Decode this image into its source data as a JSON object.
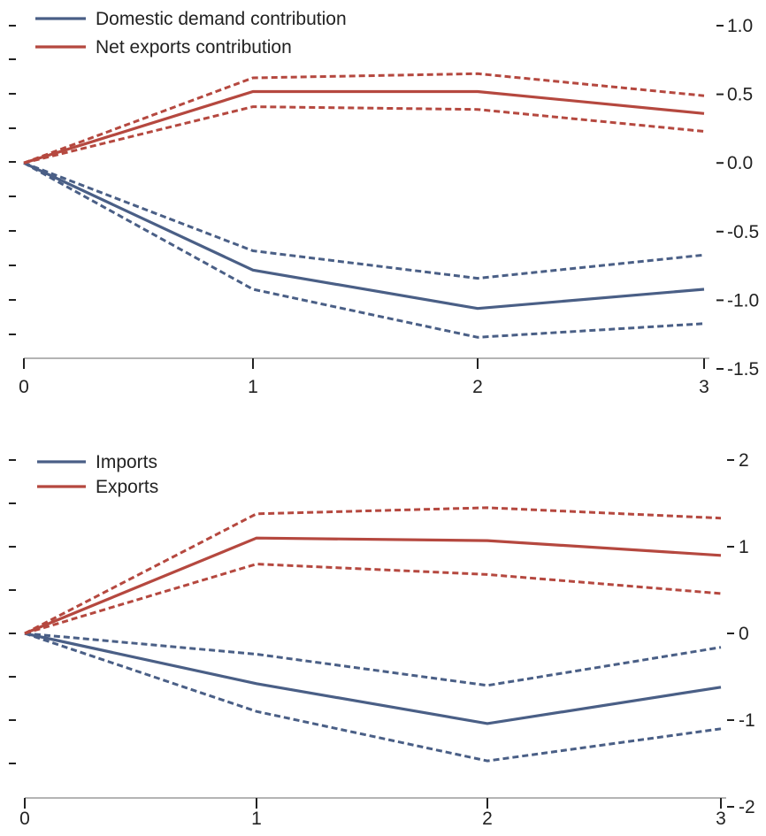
{
  "chart_data": [
    {
      "type": "line",
      "x": [
        0,
        1,
        2,
        3
      ],
      "x_tick_labels": [
        "0",
        "1",
        "2",
        "3"
      ],
      "y_tick_labels": [
        "1.0",
        "0.5",
        "0.0",
        "-0.5",
        "-1.0",
        "-1.5"
      ],
      "ylim": [
        -1.5,
        1.0
      ],
      "y_axis_side": "right",
      "grid": false,
      "legend_position": "top-left",
      "series": [
        {
          "name": "Domestic demand contribution",
          "color": "#4a5f86",
          "values": [
            0.0,
            -0.78,
            -1.06,
            -0.92
          ],
          "upper": [
            0.0,
            -0.64,
            -0.84,
            -0.67
          ],
          "lower": [
            0.0,
            -0.92,
            -1.27,
            -1.17
          ]
        },
        {
          "name": "Net exports contribution",
          "color": "#b5483f",
          "values": [
            0.0,
            0.52,
            0.52,
            0.36
          ],
          "upper": [
            0.0,
            0.62,
            0.65,
            0.49
          ],
          "lower": [
            0.0,
            0.41,
            0.39,
            0.23
          ]
        }
      ]
    },
    {
      "type": "line",
      "x": [
        0,
        1,
        2,
        3
      ],
      "x_tick_labels": [
        "0",
        "1",
        "2",
        "3"
      ],
      "y_tick_labels": [
        "2",
        "1",
        "0",
        "-1",
        "-2"
      ],
      "ylim": [
        -2,
        2
      ],
      "y_axis_side": "right",
      "grid": false,
      "legend_position": "top-left",
      "series": [
        {
          "name": "Imports",
          "color": "#4a5f86",
          "values": [
            0.0,
            -0.58,
            -1.04,
            -0.62
          ],
          "upper": [
            0.0,
            -0.24,
            -0.6,
            -0.16
          ],
          "lower": [
            0.0,
            -0.9,
            -1.47,
            -1.1
          ]
        },
        {
          "name": "Exports",
          "color": "#b5483f",
          "values": [
            0.0,
            1.1,
            1.07,
            0.9
          ],
          "upper": [
            0.0,
            1.38,
            1.45,
            1.33
          ],
          "lower": [
            0.0,
            0.8,
            0.68,
            0.46
          ]
        }
      ]
    }
  ]
}
